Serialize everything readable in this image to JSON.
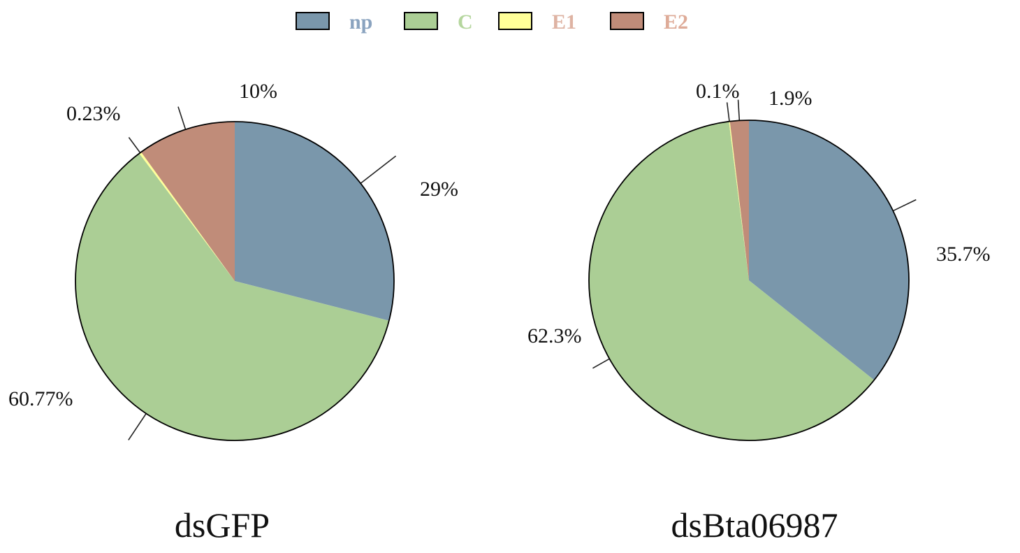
{
  "legend": [
    {
      "key": "np",
      "label": "np",
      "color": "#7a97ab",
      "text_color": "#8aa3bf"
    },
    {
      "key": "C",
      "label": "C",
      "color": "#abce95",
      "text_color": "#b5d69e"
    },
    {
      "key": "E1",
      "label": "E1",
      "color": "#ffff99",
      "text_color": "#deb3a3"
    },
    {
      "key": "E2",
      "label": "E2",
      "color": "#c08c79",
      "text_color": "#deab98"
    }
  ],
  "chart_data": [
    {
      "type": "pie",
      "title": "dsGFP",
      "categories": [
        "np",
        "C",
        "E1",
        "E2"
      ],
      "values": [
        29,
        60.77,
        0.23,
        10
      ],
      "labels": [
        "29%",
        "60.77%",
        "0.23%",
        "10%"
      ],
      "start_angle_deg": 0,
      "direction": "clockwise",
      "legend_position": "top"
    },
    {
      "type": "pie",
      "title": "dsBta06987",
      "categories": [
        "np",
        "C",
        "E1",
        "E2"
      ],
      "values": [
        35.7,
        62.3,
        0.1,
        1.9
      ],
      "labels": [
        "35.7%",
        "62.3%",
        "0.1%",
        "1.9%"
      ],
      "start_angle_deg": 0,
      "direction": "clockwise",
      "legend_position": "top"
    }
  ]
}
